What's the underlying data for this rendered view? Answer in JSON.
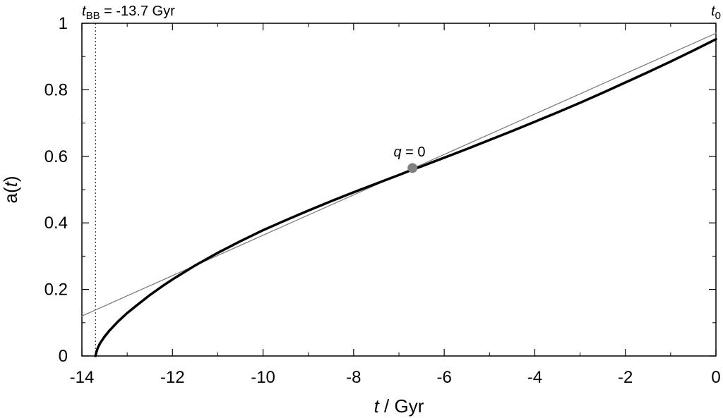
{
  "chart_data": {
    "type": "line",
    "xlabel": {
      "var": "t",
      "rest": " / Gyr"
    },
    "ylabel": {
      "pre": "a(",
      "var": "t",
      "post": ")"
    },
    "xlim": [
      -14,
      0
    ],
    "ylim": [
      0,
      1
    ],
    "x_ticks": [
      -14,
      -12,
      -10,
      -8,
      -6,
      -4,
      -2,
      0
    ],
    "x_tick_labels": [
      "-14",
      "-12",
      "-10",
      "-8",
      "-6",
      "-4",
      "-2",
      "0"
    ],
    "y_ticks": [
      0,
      0.2,
      0.4,
      0.6,
      0.8,
      1
    ],
    "y_tick_labels": [
      "0",
      "0.2",
      "0.4",
      "0.6",
      "0.8",
      "1"
    ],
    "x_minor_step": 1,
    "y_minor_step": 0.1,
    "grid": false,
    "series": [
      {
        "style": "thick-black",
        "color": "#000000",
        "x": [
          -13.7,
          -13.68,
          -13.65,
          -13.6,
          -13.5,
          -13.4,
          -13.2,
          -13.0,
          -12.8,
          -12.5,
          -12.2,
          -12.0,
          -11.5,
          -11.0,
          -10.5,
          -10.0,
          -9.5,
          -9.0,
          -8.5,
          -8.0,
          -7.5,
          -7.0,
          -6.7,
          -6.5,
          -6.0,
          -5.5,
          -5.0,
          -4.5,
          -4.0,
          -3.5,
          -3.0,
          -2.5,
          -2.0,
          -1.5,
          -1.0,
          -0.5,
          0.0
        ],
        "y": [
          0.0,
          0.012,
          0.024,
          0.038,
          0.058,
          0.075,
          0.104,
          0.129,
          0.151,
          0.183,
          0.212,
          0.23,
          0.272,
          0.31,
          0.345,
          0.378,
          0.408,
          0.437,
          0.465,
          0.492,
          0.518,
          0.544,
          0.56,
          0.57,
          0.596,
          0.622,
          0.649,
          0.676,
          0.704,
          0.732,
          0.761,
          0.791,
          0.822,
          0.853,
          0.885,
          0.918,
          0.952
        ]
      },
      {
        "style": "thin-gray",
        "color": "#7f7f7f",
        "x": [
          -14,
          0
        ],
        "y": [
          0.12,
          0.97
        ]
      }
    ],
    "marker": {
      "x": -6.7,
      "y": 0.565,
      "color": "#808080"
    },
    "marker_label": {
      "var": "q",
      "rest": " = 0"
    },
    "vline": {
      "x": -13.7,
      "style": "dotted"
    },
    "annotations": {
      "t_bb": {
        "var": "t",
        "sub": "BB",
        "rest": " = -13.7 Gyr"
      },
      "t0": {
        "var": "t",
        "sub": "0"
      }
    }
  }
}
